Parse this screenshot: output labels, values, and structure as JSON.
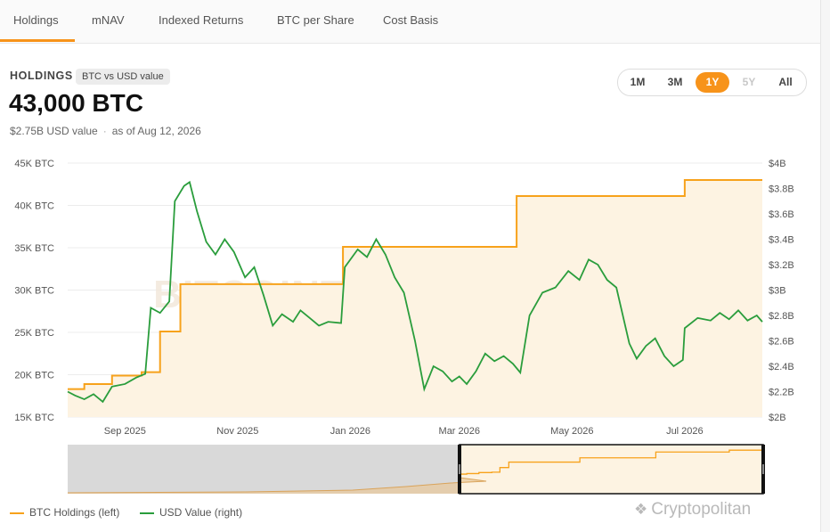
{
  "tabs": [
    {
      "label": "Holdings",
      "active": true
    },
    {
      "label": "mNAV",
      "active": false
    },
    {
      "label": "Indexed Returns",
      "active": false
    },
    {
      "label": "BTC per Share",
      "active": false
    },
    {
      "label": "Cost Basis",
      "active": false
    }
  ],
  "header": {
    "section_label": "HOLDINGS",
    "badge": "BTC vs USD value",
    "value": "43,000 BTC",
    "usd_value": "$2.75B USD value",
    "as_of": "as of Aug 12, 2026"
  },
  "range_buttons": [
    {
      "label": "1M",
      "state": "normal"
    },
    {
      "label": "3M",
      "state": "normal"
    },
    {
      "label": "1Y",
      "state": "active"
    },
    {
      "label": "5Y",
      "state": "disabled"
    },
    {
      "label": "All",
      "state": "normal"
    }
  ],
  "watermark": "BITCOINTREASURIES.NET",
  "brand": {
    "text": "Cryptopolitan",
    "icon": "cryptopolitan-logo-icon"
  },
  "colors": {
    "btc": "#f7a21b",
    "usd": "#2a9d3c",
    "accent": "#f7931a",
    "area": "#fdf3e2"
  },
  "chart_data": {
    "type": "line",
    "title": "",
    "x_range": [
      "2025-08-01",
      "2026-08-12"
    ],
    "x_ticks": [
      {
        "label": "Sep 2025",
        "date": "2025-09-01"
      },
      {
        "label": "Nov 2025",
        "date": "2025-11-01"
      },
      {
        "label": "Jan 2026",
        "date": "2026-01-01"
      },
      {
        "label": "Mar 2026",
        "date": "2026-03-01"
      },
      {
        "label": "May 2026",
        "date": "2026-05-01"
      },
      {
        "label": "Jul 2026",
        "date": "2026-07-01"
      }
    ],
    "y_left": {
      "unit": "BTC",
      "min": 15000,
      "max": 45000,
      "ticks": [
        {
          "value": 45000,
          "label": "45K BTC"
        },
        {
          "value": 40000,
          "label": "40K BTC"
        },
        {
          "value": 35000,
          "label": "35K BTC"
        },
        {
          "value": 30000,
          "label": "30K BTC"
        },
        {
          "value": 25000,
          "label": "25K BTC"
        },
        {
          "value": 20000,
          "label": "20K BTC"
        },
        {
          "value": 15000,
          "label": "15K BTC"
        }
      ]
    },
    "y_right": {
      "unit": "USD",
      "min": 2.0,
      "max": 4.0,
      "ticks": [
        {
          "value": 4.0,
          "label": "$4B"
        },
        {
          "value": 3.8,
          "label": "$3.8B"
        },
        {
          "value": 3.6,
          "label": "$3.6B"
        },
        {
          "value": 3.4,
          "label": "$3.4B"
        },
        {
          "value": 3.2,
          "label": "$3.2B"
        },
        {
          "value": 3.0,
          "label": "$3B"
        },
        {
          "value": 2.8,
          "label": "$2.8B"
        },
        {
          "value": 2.6,
          "label": "$2.6B"
        },
        {
          "value": 2.4,
          "label": "$2.4B"
        },
        {
          "value": 2.2,
          "label": "$2.2B"
        },
        {
          "value": 2.0,
          "label": "$2B"
        }
      ]
    },
    "series": [
      {
        "name": "BTC Holdings (left)",
        "axis": "left",
        "step": true,
        "points": [
          [
            "2025-08-01",
            18300
          ],
          [
            "2025-08-10",
            18900
          ],
          [
            "2025-08-25",
            19900
          ],
          [
            "2025-09-10",
            20300
          ],
          [
            "2025-09-20",
            25100
          ],
          [
            "2025-10-01",
            30700
          ],
          [
            "2025-12-28",
            35100
          ],
          [
            "2026-04-01",
            41100
          ],
          [
            "2026-07-01",
            43000
          ],
          [
            "2026-08-12",
            43000
          ]
        ]
      },
      {
        "name": "USD Value (right)",
        "axis": "right",
        "step": false,
        "points": [
          [
            "2025-08-01",
            2.2
          ],
          [
            "2025-08-05",
            2.17
          ],
          [
            "2025-08-10",
            2.14
          ],
          [
            "2025-08-15",
            2.18
          ],
          [
            "2025-08-20",
            2.12
          ],
          [
            "2025-08-25",
            2.24
          ],
          [
            "2025-09-01",
            2.26
          ],
          [
            "2025-09-07",
            2.31
          ],
          [
            "2025-09-12",
            2.34
          ],
          [
            "2025-09-15",
            2.86
          ],
          [
            "2025-09-20",
            2.82
          ],
          [
            "2025-09-25",
            2.91
          ],
          [
            "2025-09-28",
            3.7
          ],
          [
            "2025-10-03",
            3.82
          ],
          [
            "2025-10-06",
            3.85
          ],
          [
            "2025-10-10",
            3.62
          ],
          [
            "2025-10-15",
            3.38
          ],
          [
            "2025-10-20",
            3.28
          ],
          [
            "2025-10-25",
            3.4
          ],
          [
            "2025-10-30",
            3.3
          ],
          [
            "2025-11-05",
            3.1
          ],
          [
            "2025-11-10",
            3.18
          ],
          [
            "2025-11-15",
            2.96
          ],
          [
            "2025-11-20",
            2.72
          ],
          [
            "2025-11-25",
            2.81
          ],
          [
            "2025-12-01",
            2.75
          ],
          [
            "2025-12-05",
            2.84
          ],
          [
            "2025-12-10",
            2.78
          ],
          [
            "2025-12-15",
            2.72
          ],
          [
            "2025-12-20",
            2.75
          ],
          [
            "2025-12-27",
            2.74
          ],
          [
            "2025-12-29",
            3.18
          ],
          [
            "2026-01-05",
            3.32
          ],
          [
            "2026-01-10",
            3.26
          ],
          [
            "2026-01-15",
            3.4
          ],
          [
            "2026-01-20",
            3.28
          ],
          [
            "2026-01-25",
            3.1
          ],
          [
            "2026-01-30",
            2.98
          ],
          [
            "2026-02-05",
            2.6
          ],
          [
            "2026-02-10",
            2.22
          ],
          [
            "2026-02-15",
            2.4
          ],
          [
            "2026-02-20",
            2.36
          ],
          [
            "2026-02-25",
            2.28
          ],
          [
            "2026-03-01",
            2.32
          ],
          [
            "2026-03-05",
            2.26
          ],
          [
            "2026-03-10",
            2.36
          ],
          [
            "2026-03-15",
            2.5
          ],
          [
            "2026-03-20",
            2.44
          ],
          [
            "2026-03-25",
            2.48
          ],
          [
            "2026-03-30",
            2.42
          ],
          [
            "2026-04-03",
            2.35
          ],
          [
            "2026-04-08",
            2.8
          ],
          [
            "2026-04-15",
            2.98
          ],
          [
            "2026-04-22",
            3.02
          ],
          [
            "2026-04-29",
            3.15
          ],
          [
            "2026-05-05",
            3.08
          ],
          [
            "2026-05-10",
            3.24
          ],
          [
            "2026-05-15",
            3.2
          ],
          [
            "2026-05-20",
            3.08
          ],
          [
            "2026-05-25",
            3.02
          ],
          [
            "2026-06-01",
            2.58
          ],
          [
            "2026-06-05",
            2.46
          ],
          [
            "2026-06-10",
            2.56
          ],
          [
            "2026-06-15",
            2.62
          ],
          [
            "2026-06-20",
            2.48
          ],
          [
            "2026-06-25",
            2.4
          ],
          [
            "2026-06-30",
            2.45
          ],
          [
            "2026-07-01",
            2.7
          ],
          [
            "2026-07-08",
            2.78
          ],
          [
            "2026-07-15",
            2.76
          ],
          [
            "2026-07-20",
            2.82
          ],
          [
            "2026-07-25",
            2.77
          ],
          [
            "2026-07-30",
            2.84
          ],
          [
            "2026-08-04",
            2.76
          ],
          [
            "2026-08-09",
            2.8
          ],
          [
            "2026-08-12",
            2.75
          ]
        ]
      }
    ],
    "navigator": {
      "selected_from": "2025-08-01",
      "selected_to": "2026-08-12"
    },
    "legend_position": "bottom-left",
    "grid": true
  }
}
